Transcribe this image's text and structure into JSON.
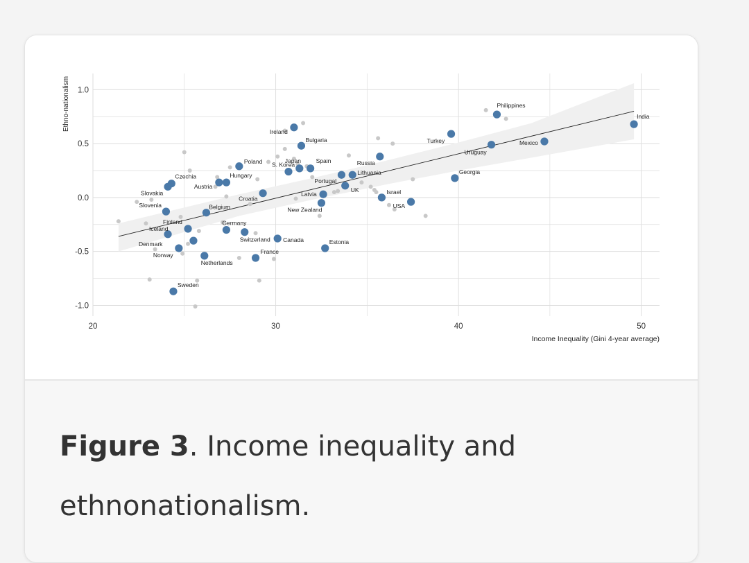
{
  "caption": {
    "figure_label": "Figure 3",
    "text": ". Income inequality and ethnonationalism."
  },
  "colors": {
    "highlight": "#4a79a8",
    "background_points": "#c8c8c8",
    "ribbon": "#f0f0f0",
    "trend": "#222222",
    "grid": "#dedede"
  },
  "chart_data": {
    "type": "scatter",
    "xlabel": "Income Inequality (Gini 4-year average)",
    "ylabel": "Ethno-nationalism",
    "xlim": [
      20,
      51
    ],
    "ylim": [
      -1.1,
      1.15
    ],
    "xticks": [
      20,
      30,
      40,
      50
    ],
    "yticks": [
      -1.0,
      -0.5,
      0.0,
      0.5,
      1.0
    ],
    "yticklabels": [
      "-1.0",
      "-0.5",
      "0.0",
      "0.5",
      "1.0"
    ],
    "grid": true,
    "trend_line": {
      "x": [
        21.4,
        49.6
      ],
      "y": [
        -0.36,
        0.8
      ]
    },
    "confidence_band": {
      "x": [
        21.4,
        28,
        32,
        36,
        40,
        44,
        49.6
      ],
      "upper": [
        -0.24,
        0.03,
        0.18,
        0.34,
        0.51,
        0.69,
        1.06
      ],
      "lower": [
        -0.5,
        -0.17,
        -0.02,
        0.12,
        0.25,
        0.37,
        0.54
      ]
    },
    "labeled_points": [
      {
        "label": "India",
        "x": 49.6,
        "y": 0.68
      },
      {
        "label": "Philippines",
        "x": 42.1,
        "y": 0.77
      },
      {
        "label": "Mexico",
        "x": 44.7,
        "y": 0.52
      },
      {
        "label": "Turkey",
        "x": 39.6,
        "y": 0.59
      },
      {
        "label": "Uruguay",
        "x": 41.8,
        "y": 0.49
      },
      {
        "label": "Georgia",
        "x": 39.8,
        "y": 0.18
      },
      {
        "label": "Ireland",
        "x": 31.0,
        "y": 0.65
      },
      {
        "label": "Bulgaria",
        "x": 31.4,
        "y": 0.48
      },
      {
        "label": "Russia",
        "x": 35.7,
        "y": 0.38
      },
      {
        "label": "S. Korea",
        "x": 30.7,
        "y": 0.24
      },
      {
        "label": "Spain",
        "x": 31.9,
        "y": 0.27
      },
      {
        "label": "Poland",
        "x": 28.0,
        "y": 0.29
      },
      {
        "label": "Hungary",
        "x": 27.3,
        "y": 0.14
      },
      {
        "label": "Japan",
        "x": 31.3,
        "y": 0.27
      },
      {
        "label": "Lithuania",
        "x": 34.2,
        "y": 0.21
      },
      {
        "label": "Portugal",
        "x": 33.6,
        "y": 0.21
      },
      {
        "label": "UK",
        "x": 33.8,
        "y": 0.11
      },
      {
        "label": "Czechia",
        "x": 24.3,
        "y": 0.13
      },
      {
        "label": "Austria",
        "x": 26.9,
        "y": 0.14
      },
      {
        "label": "Slovakia",
        "x": 24.1,
        "y": 0.1
      },
      {
        "label": "Croatia",
        "x": 29.3,
        "y": 0.04
      },
      {
        "label": "Latvia",
        "x": 32.6,
        "y": 0.03
      },
      {
        "label": "Israel",
        "x": 35.8,
        "y": 0.0
      },
      {
        "label": "USA",
        "x": 37.4,
        "y": -0.04
      },
      {
        "label": "New Zealand",
        "x": 32.5,
        "y": -0.05
      },
      {
        "label": "Slovenia",
        "x": 24.0,
        "y": -0.13
      },
      {
        "label": "Belgium",
        "x": 26.2,
        "y": -0.14
      },
      {
        "label": "Finland",
        "x": 25.2,
        "y": -0.29
      },
      {
        "label": "Germany",
        "x": 27.3,
        "y": -0.3
      },
      {
        "label": "Switzerland",
        "x": 28.3,
        "y": -0.32
      },
      {
        "label": "Iceland",
        "x": 24.1,
        "y": -0.34
      },
      {
        "label": "Canada",
        "x": 30.1,
        "y": -0.38
      },
      {
        "label": "Denmark",
        "x": 25.5,
        "y": -0.4
      },
      {
        "label": "Estonia",
        "x": 32.7,
        "y": -0.47
      },
      {
        "label": "Norway",
        "x": 24.7,
        "y": -0.47
      },
      {
        "label": "France",
        "x": 28.9,
        "y": -0.56
      },
      {
        "label": "Netherlands",
        "x": 26.1,
        "y": -0.54
      },
      {
        "label": "Sweden",
        "x": 24.4,
        "y": -0.87
      }
    ],
    "unlabeled_points": [
      {
        "x": 41.5,
        "y": 0.81
      },
      {
        "x": 42.6,
        "y": 0.73
      },
      {
        "x": 31.5,
        "y": 0.69
      },
      {
        "x": 30.5,
        "y": 0.62
      },
      {
        "x": 35.6,
        "y": 0.55
      },
      {
        "x": 36.4,
        "y": 0.5
      },
      {
        "x": 30.5,
        "y": 0.45
      },
      {
        "x": 25.0,
        "y": 0.42
      },
      {
        "x": 34.0,
        "y": 0.39
      },
      {
        "x": 30.1,
        "y": 0.38
      },
      {
        "x": 29.6,
        "y": 0.33
      },
      {
        "x": 31.0,
        "y": 0.36
      },
      {
        "x": 31.2,
        "y": 0.31
      },
      {
        "x": 27.5,
        "y": 0.28
      },
      {
        "x": 31.7,
        "y": 0.29
      },
      {
        "x": 25.3,
        "y": 0.25
      },
      {
        "x": 26.8,
        "y": 0.19
      },
      {
        "x": 29.0,
        "y": 0.17
      },
      {
        "x": 32.0,
        "y": 0.19
      },
      {
        "x": 37.5,
        "y": 0.17
      },
      {
        "x": 26.7,
        "y": 0.1
      },
      {
        "x": 35.2,
        "y": 0.1
      },
      {
        "x": 35.4,
        "y": 0.07
      },
      {
        "x": 35.5,
        "y": 0.05
      },
      {
        "x": 33.2,
        "y": 0.05
      },
      {
        "x": 33.4,
        "y": 0.06
      },
      {
        "x": 34.7,
        "y": 0.14
      },
      {
        "x": 27.3,
        "y": 0.01
      },
      {
        "x": 31.1,
        "y": -0.01
      },
      {
        "x": 22.4,
        "y": -0.04
      },
      {
        "x": 23.2,
        "y": -0.02
      },
      {
        "x": 28.6,
        "y": -0.06
      },
      {
        "x": 36.2,
        "y": -0.07
      },
      {
        "x": 36.5,
        "y": -0.11
      },
      {
        "x": 38.2,
        "y": -0.17
      },
      {
        "x": 32.4,
        "y": -0.17
      },
      {
        "x": 24.8,
        "y": -0.18
      },
      {
        "x": 21.4,
        "y": -0.22
      },
      {
        "x": 22.9,
        "y": -0.24
      },
      {
        "x": 27.1,
        "y": -0.23
      },
      {
        "x": 25.8,
        "y": -0.31
      },
      {
        "x": 28.9,
        "y": -0.33
      },
      {
        "x": 25.2,
        "y": -0.43
      },
      {
        "x": 23.4,
        "y": -0.48
      },
      {
        "x": 24.9,
        "y": -0.52
      },
      {
        "x": 28.0,
        "y": -0.56
      },
      {
        "x": 29.9,
        "y": -0.57
      },
      {
        "x": 23.1,
        "y": -0.76
      },
      {
        "x": 25.7,
        "y": -0.77
      },
      {
        "x": 29.1,
        "y": -0.77
      },
      {
        "x": 25.6,
        "y": -1.01
      }
    ]
  }
}
